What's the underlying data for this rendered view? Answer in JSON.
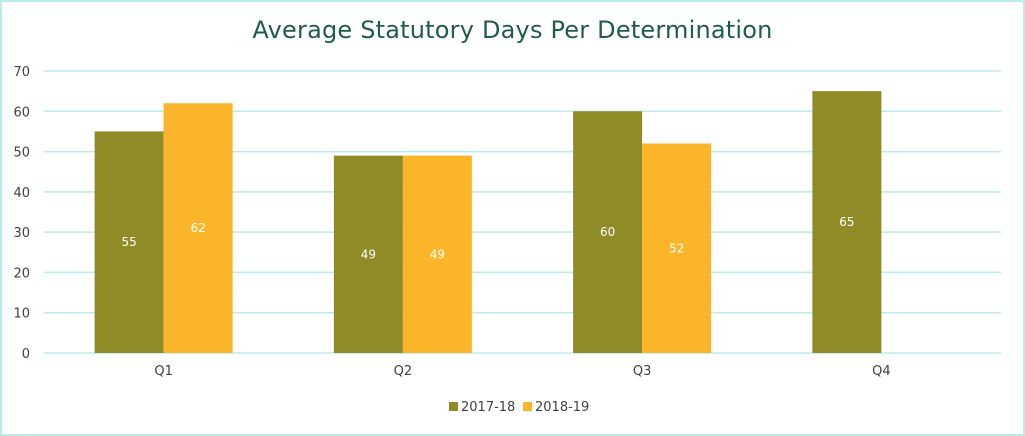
{
  "chart_data": {
    "type": "bar",
    "title": "Average Statutory Days Per Determination",
    "xlabel": "",
    "ylabel": "",
    "categories": [
      "Q1",
      "Q2",
      "Q3",
      "Q4"
    ],
    "series": [
      {
        "name": "2017-18",
        "values": [
          55,
          49,
          60,
          65
        ],
        "labels": [
          "55",
          "49",
          "60",
          "65"
        ],
        "color": "#8f8b27"
      },
      {
        "name": "2018-19",
        "values": [
          62,
          49,
          52,
          null
        ],
        "labels": [
          "62",
          "49",
          "52",
          ""
        ],
        "color": "#fbb52b"
      }
    ],
    "ylim": [
      0,
      70
    ],
    "yticks": [
      0,
      10,
      20,
      30,
      40,
      50,
      60,
      70
    ],
    "grid": true,
    "gridColor": "#b9ecea",
    "legend": "bottom",
    "borderColor": "#b9ecea",
    "titleColor": "#1f5c4a"
  }
}
